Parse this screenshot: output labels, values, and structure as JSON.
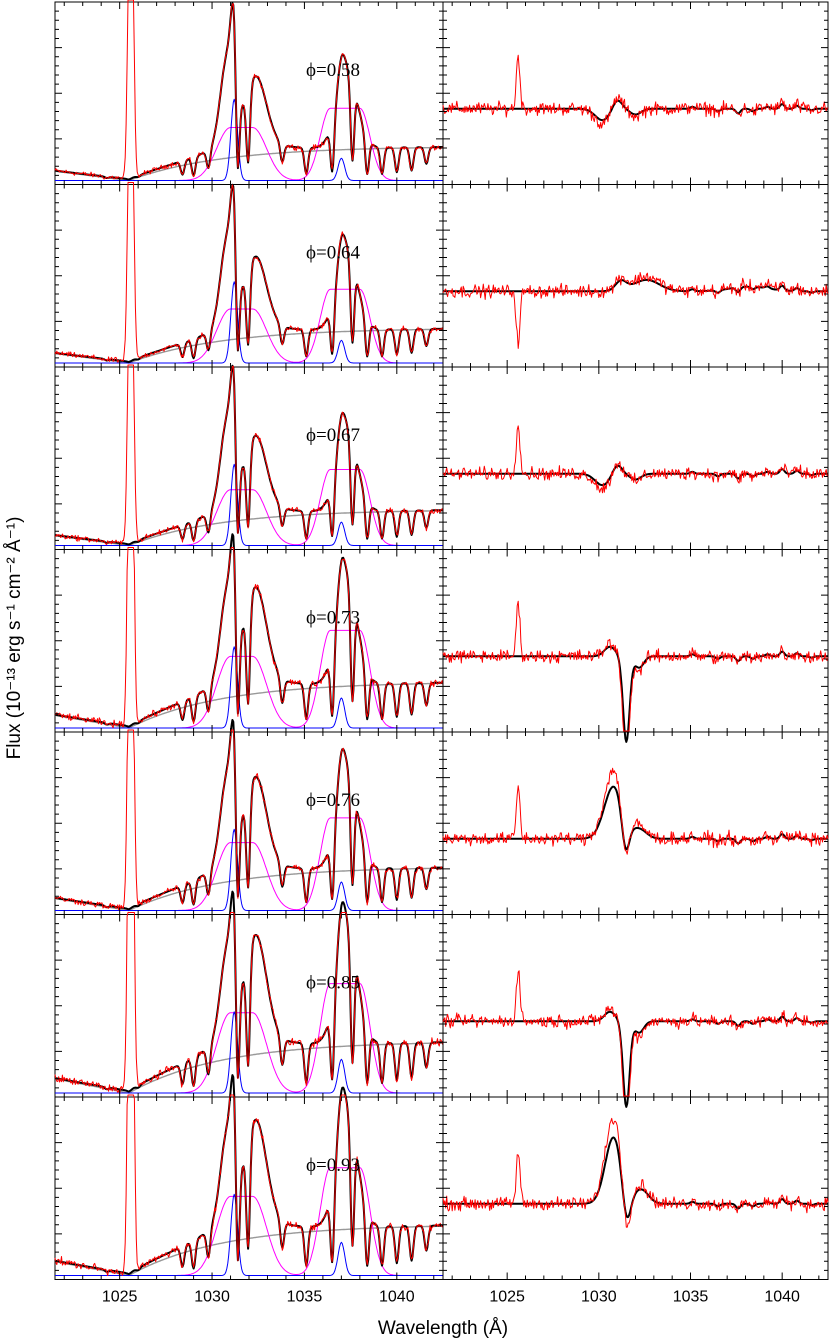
{
  "chart_data": {
    "type": "line",
    "xlabel": "Wavelength (Å)",
    "ylabel": "Flux (10⁻¹³ erg s⁻¹ cm⁻² Å⁻¹)",
    "xlim": [
      1021.5,
      1042.5
    ],
    "x_ticks": [
      1025,
      1030,
      1035,
      1040
    ],
    "x_tick_labels": [
      "1025",
      "1030",
      "1035",
      "1040"
    ],
    "columns": 2,
    "panels": [
      {
        "phase_label": "ϕ=0.58",
        "left_peak": 1.0,
        "right_feature": "weak-dip"
      },
      {
        "phase_label": "ϕ=0.64",
        "left_peak": 0.98,
        "right_feature": "weak-bump"
      },
      {
        "phase_label": "ϕ=0.67",
        "left_peak": 0.95,
        "right_feature": "weak-dip"
      },
      {
        "phase_label": "ϕ=0.73",
        "left_peak": 0.74,
        "right_feature": "deep-absorption"
      },
      {
        "phase_label": "ϕ=0.76",
        "left_peak": 0.78,
        "right_feature": "p-cygni"
      },
      {
        "phase_label": "ϕ=0.85",
        "left_peak": 0.66,
        "right_feature": "deep-absorption"
      },
      {
        "phase_label": "ϕ=0.93",
        "left_peak": 0.67,
        "right_feature": "emission-then-absorption"
      }
    ],
    "series": [
      {
        "role": "observed",
        "color": "#ff0000"
      },
      {
        "role": "model",
        "color": "#000000"
      },
      {
        "role": "continuum",
        "color": "#999999"
      },
      {
        "role": "broad-component",
        "color": "#ff00ff"
      },
      {
        "role": "narrow-component",
        "color": "#0000ff"
      }
    ]
  }
}
